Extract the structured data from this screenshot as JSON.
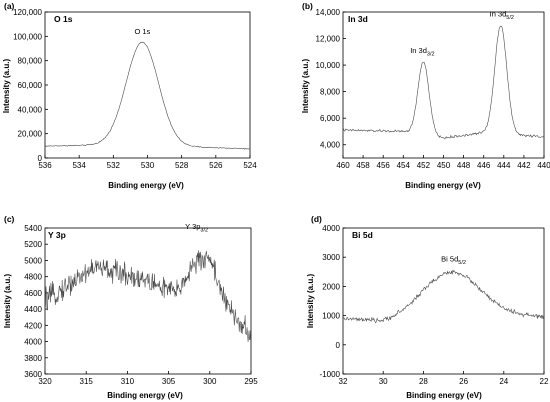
{
  "chart_data": [
    {
      "type": "line",
      "panel_label": "(a)",
      "title": "O 1s",
      "xlabel": "Binding energy (eV)",
      "ylabel": "Intensity (a.u.)",
      "xlim": [
        536,
        524
      ],
      "ylim": [
        0,
        120000
      ],
      "x_ticks": [
        536,
        534,
        532,
        530,
        528,
        526,
        524
      ],
      "x_tick_labels": [
        "536",
        "534",
        "532",
        "530",
        "528",
        "526",
        "524"
      ],
      "y_ticks": [
        0,
        20000,
        40000,
        60000,
        80000,
        100000,
        120000
      ],
      "y_tick_labels": [
        "0",
        "20,000",
        "40,000",
        "60,000",
        "80,000",
        "100,000",
        "120,000"
      ],
      "annotations": [
        {
          "text": "O 1s",
          "sub": "",
          "x": 530.3,
          "y": 102000
        }
      ],
      "baseline": [
        [
          536,
          9800
        ],
        [
          532,
          10800
        ],
        [
          528,
          9400
        ],
        [
          524,
          7500
        ]
      ],
      "peaks": [
        {
          "center": 530.3,
          "height": 85000,
          "width": 0.95
        }
      ],
      "noise": 400,
      "x": [],
      "y": []
    },
    {
      "type": "line",
      "panel_label": "(b)",
      "title": "In 3d",
      "xlabel": "Binding energy (eV)",
      "ylabel": "Intensity (a.u.)",
      "xlim": [
        460,
        440
      ],
      "ylim": [
        3000,
        14000
      ],
      "x_ticks": [
        460,
        458,
        456,
        454,
        452,
        450,
        448,
        446,
        444,
        442,
        440
      ],
      "x_tick_labels": [
        "460",
        "458",
        "456",
        "454",
        "452",
        "450",
        "448",
        "446",
        "444",
        "442",
        "440"
      ],
      "y_ticks": [
        4000,
        6000,
        8000,
        10000,
        12000,
        14000
      ],
      "y_tick_labels": [
        "4,000",
        "6,000",
        "8,000",
        "10,000",
        "12,000",
        "14,000"
      ],
      "annotations": [
        {
          "text": "In 3d",
          "sub": "3/2",
          "x": 452.1,
          "y": 10900
        },
        {
          "text": "In 3d",
          "sub": "5/2",
          "x": 444.2,
          "y": 13650
        }
      ],
      "baseline": [
        [
          460,
          5100
        ],
        [
          454,
          5000
        ],
        [
          450,
          4500
        ],
        [
          446,
          4900
        ],
        [
          440,
          4600
        ]
      ],
      "peaks": [
        {
          "center": 452.0,
          "height": 5500,
          "width": 0.55
        },
        {
          "center": 444.3,
          "height": 8200,
          "width": 0.6
        }
      ],
      "noise": 90,
      "x": [],
      "y": []
    },
    {
      "type": "line",
      "panel_label": "(c)",
      "title": "Y 3p",
      "xlabel": "Binding energy (eV)",
      "ylabel": "Intensity (a.u.)",
      "xlim": [
        320,
        295
      ],
      "ylim": [
        3600,
        5400
      ],
      "x_ticks": [
        320,
        315,
        310,
        305,
        300,
        295
      ],
      "x_tick_labels": [
        "320",
        "315",
        "310",
        "305",
        "300",
        "295"
      ],
      "y_ticks": [
        3600,
        3800,
        4000,
        4200,
        4400,
        4600,
        4800,
        5000,
        5200,
        5400
      ],
      "y_tick_labels": [
        "3600",
        "3800",
        "4000",
        "4200",
        "4400",
        "4600",
        "4800",
        "5000",
        "5200",
        "5400"
      ],
      "annotations": [
        {
          "text": "Y 3p",
          "sub": "3/2",
          "x": 301.6,
          "y": 5390
        }
      ],
      "baseline": [
        [
          320,
          4500
        ],
        [
          314,
          4920
        ],
        [
          309,
          4800
        ],
        [
          304,
          4600
        ],
        [
          302,
          4950
        ],
        [
          300,
          5050
        ],
        [
          298,
          4450
        ],
        [
          295,
          4050
        ]
      ],
      "peaks": [],
      "noise": 140,
      "x": [],
      "y": []
    },
    {
      "type": "line",
      "panel_label": "(d)",
      "title": "Bi 5d",
      "xlabel": "Binding energy (eV)",
      "ylabel": "Intensity (a.u.)",
      "xlim": [
        32,
        22
      ],
      "ylim": [
        -1000,
        4000
      ],
      "x_ticks": [
        32,
        30,
        28,
        26,
        24,
        22
      ],
      "x_tick_labels": [
        "32",
        "30",
        "28",
        "26",
        "24",
        "22"
      ],
      "y_ticks": [
        -1000,
        0,
        1000,
        2000,
        3000,
        4000
      ],
      "y_tick_labels": [
        "-1000",
        "0",
        "1000",
        "2000",
        "3000",
        "4000"
      ],
      "annotations": [
        {
          "text": "Bi 5d",
          "sub": "5/2",
          "x": 26.5,
          "y": 2850
        }
      ],
      "baseline": [
        [
          32,
          900
        ],
        [
          30,
          800
        ],
        [
          28,
          1200
        ],
        [
          24,
          1050
        ],
        [
          22,
          950
        ]
      ],
      "peaks": [
        {
          "center": 26.5,
          "height": 1350,
          "width": 1.3
        }
      ],
      "noise": 75,
      "x": [],
      "y": []
    }
  ]
}
